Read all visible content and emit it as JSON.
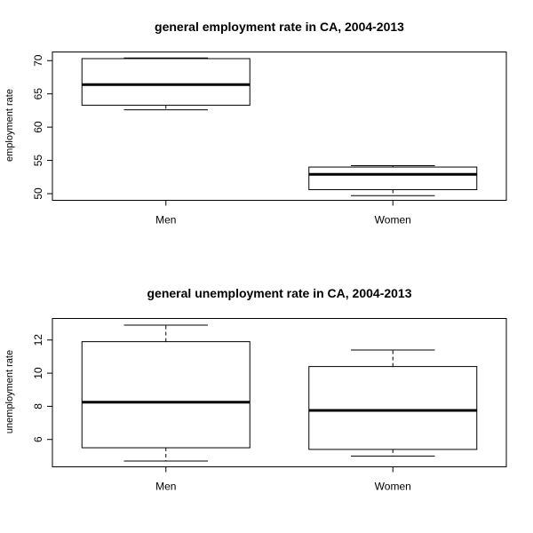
{
  "chart_data": [
    {
      "type": "box",
      "title": "general employment rate in CA, 2004-2013",
      "xlabel": "",
      "ylabel": "employment rate",
      "ylim": [
        49,
        71.3
      ],
      "yticks": [
        50,
        55,
        60,
        65,
        70
      ],
      "grid": false,
      "categories": [
        "Men",
        "Women"
      ],
      "boxes": [
        {
          "category": "Men",
          "min": 62.6,
          "q1": 63.3,
          "median": 66.4,
          "q3": 70.3,
          "max": 70.4
        },
        {
          "category": "Women",
          "min": 49.7,
          "q1": 50.6,
          "median": 52.9,
          "q3": 54.0,
          "max": 54.2
        }
      ]
    },
    {
      "type": "box",
      "title": "general unemployment rate in CA, 2004-2013",
      "xlabel": "",
      "ylabel": "unemployment rate",
      "ylim": [
        4.35,
        13.3
      ],
      "yticks": [
        6,
        8,
        10,
        12
      ],
      "grid": false,
      "categories": [
        "Men",
        "Women"
      ],
      "boxes": [
        {
          "category": "Men",
          "min": 4.7,
          "q1": 5.5,
          "median": 8.25,
          "q3": 11.9,
          "max": 12.9
        },
        {
          "category": "Women",
          "min": 5.0,
          "q1": 5.4,
          "median": 7.75,
          "q3": 10.4,
          "max": 11.4
        }
      ]
    }
  ]
}
